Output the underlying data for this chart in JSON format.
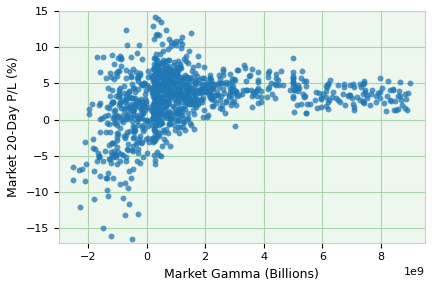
{
  "xlabel": "Market Gamma (Billions)",
  "ylabel": "Market 20-Day P/L (%)",
  "xlim": [
    -3000000000.0,
    9500000000.0
  ],
  "ylim": [
    -17,
    15
  ],
  "xticks": [
    -2000000000.0,
    0,
    2000000000.0,
    4000000000.0,
    6000000000.0,
    8000000000.0
  ],
  "yticks": [
    -15,
    -10,
    -5,
    0,
    5,
    10,
    15
  ],
  "dot_color": "#1f77b4",
  "dot_size": 18,
  "dot_alpha": 0.75,
  "background_color": "#eef7ee",
  "grid_color": "#aad4aa",
  "seed": 42,
  "n_points": 1100
}
